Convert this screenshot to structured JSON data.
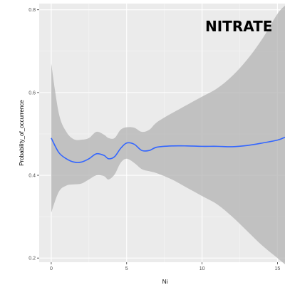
{
  "chart_data": {
    "type": "line",
    "title": "NITRATE",
    "xlabel": "Ni",
    "ylabel": "Probability_of_occurrence",
    "xlim": [
      -0.8,
      15.5
    ],
    "ylim": [
      0.19,
      0.815
    ],
    "x_ticks": [
      0,
      5,
      10,
      15
    ],
    "x_tick_labels": [
      "0",
      "5",
      "10",
      "15"
    ],
    "y_ticks": [
      0.2,
      0.4,
      0.6,
      0.8
    ],
    "y_tick_labels": [
      "0.2",
      "0.4",
      "0.6",
      "0.8"
    ],
    "grid": true,
    "legend": "none",
    "series": [
      {
        "color": "#3366FF",
        "x": [
          0,
          0.5,
          1,
          1.5,
          2,
          2.5,
          3,
          3.5,
          3.8,
          4.2,
          4.6,
          5,
          5.5,
          6,
          6.5,
          7,
          8,
          9,
          10,
          11,
          12,
          13,
          14,
          15,
          15.5
        ],
        "y": [
          0.49,
          0.455,
          0.44,
          0.432,
          0.432,
          0.44,
          0.452,
          0.448,
          0.44,
          0.445,
          0.465,
          0.478,
          0.475,
          0.46,
          0.46,
          0.468,
          0.471,
          0.471,
          0.47,
          0.47,
          0.469,
          0.472,
          0.478,
          0.485,
          0.492
        ],
        "ci_lower": [
          0.31,
          0.36,
          0.375,
          0.378,
          0.38,
          0.39,
          0.4,
          0.398,
          0.39,
          0.402,
          0.43,
          0.44,
          0.43,
          0.415,
          0.41,
          0.405,
          0.39,
          0.37,
          0.35,
          0.33,
          0.3,
          0.265,
          0.23,
          0.2,
          0.185
        ],
        "ci_upper": [
          0.67,
          0.55,
          0.505,
          0.487,
          0.486,
          0.49,
          0.505,
          0.498,
          0.49,
          0.49,
          0.51,
          0.516,
          0.515,
          0.505,
          0.51,
          0.528,
          0.55,
          0.57,
          0.59,
          0.61,
          0.64,
          0.68,
          0.73,
          0.79,
          0.81
        ]
      }
    ]
  },
  "style": {
    "panel_bg": "#ebebeb",
    "grid_major": "#ffffff",
    "ribbon": "#b3b3b3",
    "line": "#3366FF"
  }
}
